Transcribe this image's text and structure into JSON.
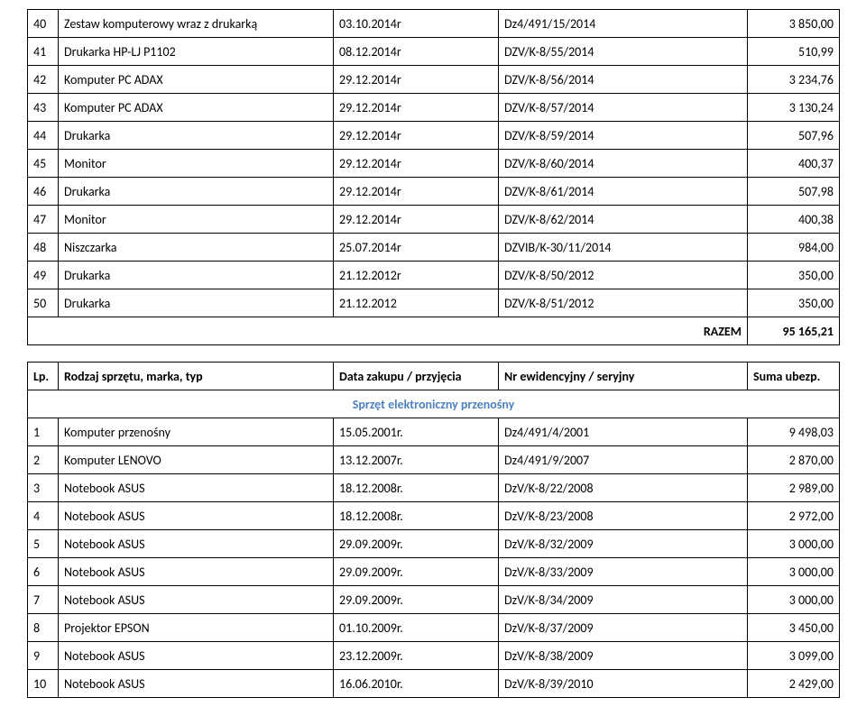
{
  "table1": {
    "rows": [
      {
        "n": "40",
        "name": "Zestaw komputerowy wraz z drukarką",
        "date": "03.10.2014r",
        "ref": "Dz4/491/15/2014",
        "amt": "3 850,00"
      },
      {
        "n": "41",
        "name": "Drukarka HP-LJ P1102",
        "date": "08.12.2014r",
        "ref": "DZV/K-8/55/2014",
        "amt": "510,99"
      },
      {
        "n": "42",
        "name": "Komputer PC ADAX",
        "date": "29.12.2014r",
        "ref": "DZV/K-8/56/2014",
        "amt": "3 234,76"
      },
      {
        "n": "43",
        "name": "Komputer PC ADAX",
        "date": "29.12.2014r",
        "ref": "DZV/K-8/57/2014",
        "amt": "3 130,24"
      },
      {
        "n": "44",
        "name": "Drukarka",
        "date": "29.12.2014r",
        "ref": "DZV/K-8/59/2014",
        "amt": "507,96"
      },
      {
        "n": "45",
        "name": "Monitor",
        "date": "29.12.2014r",
        "ref": "DZV/K-8/60/2014",
        "amt": "400,37"
      },
      {
        "n": "46",
        "name": "Drukarka",
        "date": "29.12.2014r",
        "ref": "DZV/K-8/61/2014",
        "amt": "507,98"
      },
      {
        "n": "47",
        "name": "Monitor",
        "date": "29.12.2014r",
        "ref": "DZV/K-8/62/2014",
        "amt": "400,38"
      },
      {
        "n": "48",
        "name": "Niszczarka",
        "date": "25.07.2014r",
        "ref": "DZVIB/K-30/11/2014",
        "amt": "984,00"
      },
      {
        "n": "49",
        "name": "Drukarka",
        "date": "21.12.2012r",
        "ref": "DZV/K-8/50/2012",
        "amt": "350,00"
      },
      {
        "n": "50",
        "name": "Drukarka",
        "date": "21.12.2012",
        "ref": "DZV/K-8/51/2012",
        "amt": "350,00"
      }
    ],
    "summary_label": "RAZEM",
    "summary_value": "95 165,21"
  },
  "table2": {
    "headers": {
      "lp": "Lp.",
      "name": "Rodzaj sprzętu, marka, typ",
      "date": "Data zakupu / przyjęcia",
      "ref": "Nr ewidencyjny / seryjny",
      "amt": "Suma ubezp."
    },
    "section_title": "Sprzęt elektroniczny przenośny",
    "section_title_color": "#4f81bd",
    "rows": [
      {
        "n": "1",
        "name": "Komputer przenośny",
        "date": "15.05.2001r.",
        "ref": "Dz4/491/4/2001",
        "amt": "9 498,03"
      },
      {
        "n": "2",
        "name": "Komputer LENOVO",
        "date": "13.12.2007r.",
        "ref": "Dz4/491/9/2007",
        "amt": "2 870,00"
      },
      {
        "n": "3",
        "name": "Notebook ASUS",
        "date": "18.12.2008r.",
        "ref": "DzV/K-8/22/2008",
        "amt": "2 989,00"
      },
      {
        "n": "4",
        "name": "Notebook ASUS",
        "date": "18.12.2008r.",
        "ref": "DzV/K-8/23/2008",
        "amt": "2 972,00"
      },
      {
        "n": "5",
        "name": "Notebook ASUS",
        "date": "29.09.2009r.",
        "ref": "DzV/K-8/32/2009",
        "amt": "3 000,00"
      },
      {
        "n": "6",
        "name": "Notebook ASUS",
        "date": "29.09.2009r.",
        "ref": "DzV/K-8/33/2009",
        "amt": "3 000,00"
      },
      {
        "n": "7",
        "name": "Notebook ASUS",
        "date": "29.09.2009r.",
        "ref": "DzV/K-8/34/2009",
        "amt": "3 000,00"
      },
      {
        "n": "8",
        "name": "Projektor EPSON",
        "date": "01.10.2009r.",
        "ref": "DzV/K-8/37/2009",
        "amt": "3 450,00"
      },
      {
        "n": "9",
        "name": "Notebook ASUS",
        "date": "23.12.2009r.",
        "ref": "DzV/K-8/38/2009",
        "amt": "3 099,00"
      },
      {
        "n": "10",
        "name": "Notebook ASUS",
        "date": "16.06.2010r.",
        "ref": "DzV/K-8/39/2010",
        "amt": "2 429,00"
      }
    ]
  }
}
